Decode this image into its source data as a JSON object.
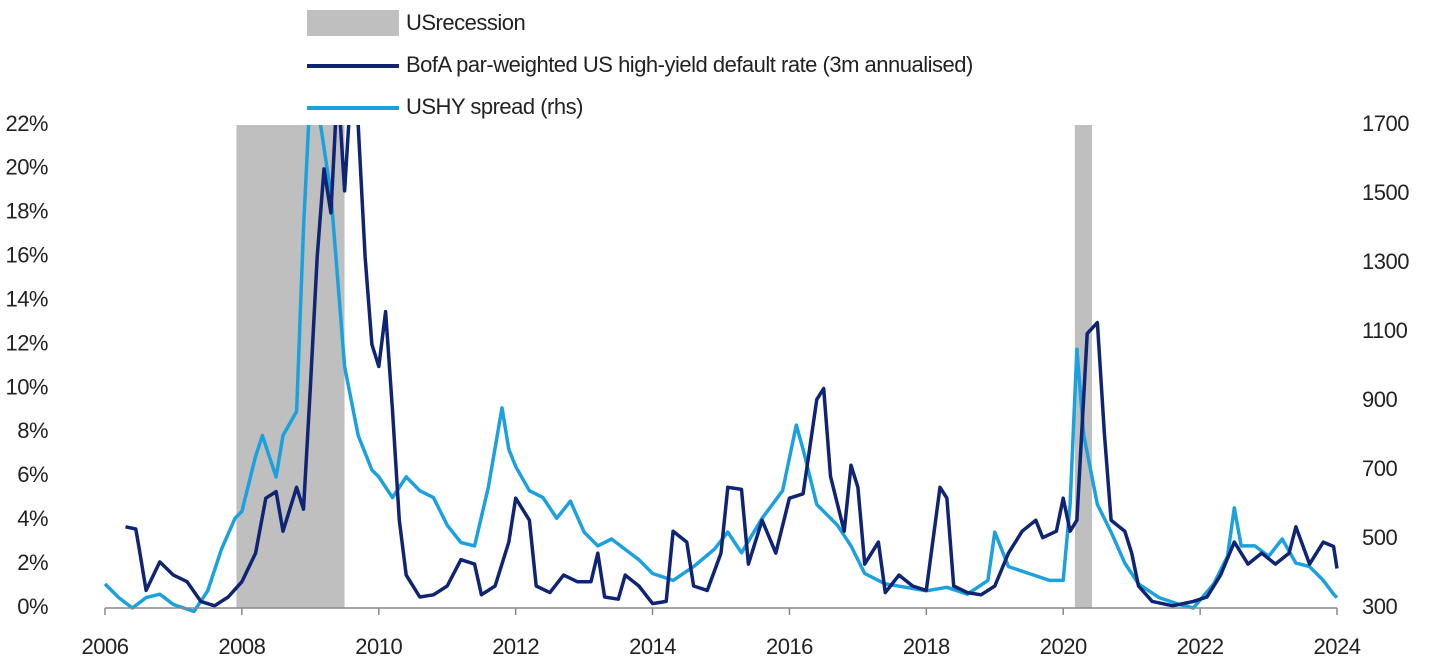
{
  "chart_data": {
    "type": "line",
    "xlim": [
      2006,
      2024
    ],
    "xticks": [
      2006,
      2008,
      2010,
      2012,
      2014,
      2016,
      2018,
      2020,
      2022,
      2024
    ],
    "ylim": [
      0,
      22
    ],
    "yticks": [
      {
        "value": 0,
        "label": "0%"
      },
      {
        "value": 2,
        "label": "2%"
      },
      {
        "value": 4,
        "label": "4%"
      },
      {
        "value": 6,
        "label": "6%"
      },
      {
        "value": 8,
        "label": "8%"
      },
      {
        "value": 10,
        "label": "10%"
      },
      {
        "value": 12,
        "label": "12%"
      },
      {
        "value": 14,
        "label": "14%"
      },
      {
        "value": 16,
        "label": "16%"
      },
      {
        "value": 18,
        "label": "18%"
      },
      {
        "value": 20,
        "label": "20%"
      },
      {
        "value": 22,
        "label": "22%"
      }
    ],
    "y2lim": [
      300,
      1700
    ],
    "y2ticks": [
      300,
      500,
      700,
      900,
      1100,
      1300,
      1500,
      1700
    ],
    "grid": false,
    "shaded_periods": {
      "name": "USrecession",
      "color": "#bfbfbf",
      "ranges": [
        [
          2007.92,
          2009.5
        ],
        [
          2020.17,
          2020.42
        ]
      ]
    },
    "series": [
      {
        "name": "BofA par-weighted US high-yield default rate (3m annualised)",
        "color": "#0f2472",
        "axis": "y",
        "x": [
          2006.3,
          2006.45,
          2006.5,
          2006.6,
          2006.8,
          2007.0,
          2007.2,
          2007.4,
          2007.6,
          2007.8,
          2008.0,
          2008.2,
          2008.35,
          2008.5,
          2008.6,
          2008.8,
          2008.9,
          2009.0,
          2009.1,
          2009.2,
          2009.3,
          2009.4,
          2009.5,
          2009.6,
          2009.7,
          2009.8,
          2009.9,
          2010.0,
          2010.1,
          2010.2,
          2010.3,
          2010.4,
          2010.6,
          2010.8,
          2011.0,
          2011.2,
          2011.4,
          2011.5,
          2011.7,
          2011.9,
          2012.0,
          2012.2,
          2012.3,
          2012.5,
          2012.7,
          2012.9,
          2013.1,
          2013.2,
          2013.3,
          2013.5,
          2013.6,
          2013.8,
          2014.0,
          2014.2,
          2014.3,
          2014.5,
          2014.6,
          2014.8,
          2015.0,
          2015.1,
          2015.3,
          2015.4,
          2015.6,
          2015.8,
          2016.0,
          2016.2,
          2016.4,
          2016.5,
          2016.6,
          2016.8,
          2016.9,
          2017.0,
          2017.1,
          2017.3,
          2017.4,
          2017.6,
          2017.8,
          2018.0,
          2018.2,
          2018.3,
          2018.4,
          2018.6,
          2018.8,
          2019.0,
          2019.2,
          2019.4,
          2019.6,
          2019.7,
          2019.9,
          2020.0,
          2020.1,
          2020.2,
          2020.35,
          2020.5,
          2020.6,
          2020.7,
          2020.9,
          2021.0,
          2021.1,
          2021.3,
          2021.6,
          2021.9,
          2022.1,
          2022.3,
          2022.5,
          2022.7,
          2022.9,
          2023.1,
          2023.3,
          2023.4,
          2023.6,
          2023.8,
          2023.95,
          2024.0
        ],
        "values": [
          3.7,
          3.6,
          2.7,
          0.8,
          2.1,
          1.5,
          1.2,
          0.3,
          0.1,
          0.5,
          1.2,
          2.5,
          5.0,
          5.3,
          3.5,
          5.5,
          4.5,
          10,
          16,
          20,
          18,
          24,
          19,
          24,
          22,
          16,
          12,
          11,
          13.5,
          9,
          4,
          1.5,
          0.5,
          0.6,
          1.0,
          2.2,
          2.0,
          0.6,
          1.0,
          3.0,
          5.0,
          4.0,
          1.0,
          0.7,
          1.5,
          1.2,
          1.2,
          2.5,
          0.5,
          0.4,
          1.5,
          1.0,
          0.2,
          0.3,
          3.5,
          3.0,
          1.0,
          0.8,
          2.5,
          5.5,
          5.4,
          2.0,
          4.0,
          2.5,
          5.0,
          5.2,
          9.5,
          10,
          6,
          3.5,
          6.5,
          5.5,
          2.0,
          3.0,
          0.7,
          1.5,
          1.0,
          0.8,
          5.5,
          5.0,
          1.0,
          0.7,
          0.6,
          1.0,
          2.5,
          3.5,
          4.0,
          3.2,
          3.5,
          5.0,
          3.5,
          4.0,
          12.5,
          13,
          8,
          4,
          3.5,
          2.5,
          1.0,
          0.3,
          0.1,
          0.3,
          0.5,
          1.5,
          3.0,
          2.0,
          2.5,
          2.0,
          2.5,
          3.7,
          2.0,
          3.0,
          2.8,
          1.8
        ]
      },
      {
        "name": "USHY spread (rhs)",
        "color": "#1ba1dd",
        "axis": "y2",
        "x": [
          2006.0,
          2006.2,
          2006.4,
          2006.6,
          2006.8,
          2007.0,
          2007.3,
          2007.5,
          2007.7,
          2007.9,
          2008.0,
          2008.2,
          2008.3,
          2008.5,
          2008.6,
          2008.8,
          2008.9,
          2009.0,
          2009.15,
          2009.3,
          2009.5,
          2009.7,
          2009.9,
          2010.0,
          2010.2,
          2010.4,
          2010.6,
          2010.8,
          2011.0,
          2011.2,
          2011.4,
          2011.6,
          2011.8,
          2011.9,
          2012.0,
          2012.2,
          2012.4,
          2012.6,
          2012.8,
          2013.0,
          2013.2,
          2013.4,
          2013.6,
          2013.8,
          2014.0,
          2014.3,
          2014.6,
          2014.9,
          2015.1,
          2015.3,
          2015.6,
          2015.9,
          2016.1,
          2016.2,
          2016.4,
          2016.7,
          2016.9,
          2017.1,
          2017.4,
          2017.7,
          2018.0,
          2018.3,
          2018.6,
          2018.9,
          2019.0,
          2019.2,
          2019.5,
          2019.8,
          2020.0,
          2020.1,
          2020.2,
          2020.3,
          2020.5,
          2020.7,
          2020.9,
          2021.1,
          2021.4,
          2021.7,
          2021.9,
          2022.2,
          2022.4,
          2022.5,
          2022.6,
          2022.8,
          2023.0,
          2023.2,
          2023.4,
          2023.6,
          2023.8,
          2023.95,
          2024.0
        ],
        "values": [
          370,
          330,
          300,
          330,
          340,
          310,
          290,
          350,
          470,
          560,
          580,
          740,
          800,
          680,
          800,
          870,
          1400,
          1800,
          1700,
          1500,
          1000,
          800,
          700,
          680,
          620,
          680,
          640,
          620,
          540,
          490,
          480,
          650,
          880,
          760,
          710,
          640,
          620,
          560,
          610,
          520,
          480,
          500,
          470,
          440,
          400,
          380,
          420,
          470,
          520,
          460,
          560,
          640,
          830,
          760,
          600,
          540,
          480,
          400,
          370,
          360,
          350,
          360,
          340,
          380,
          520,
          420,
          400,
          380,
          380,
          600,
          1050,
          800,
          600,
          520,
          430,
          370,
          330,
          310,
          300,
          370,
          450,
          590,
          480,
          480,
          450,
          500,
          430,
          420,
          380,
          340,
          330
        ]
      }
    ]
  }
}
